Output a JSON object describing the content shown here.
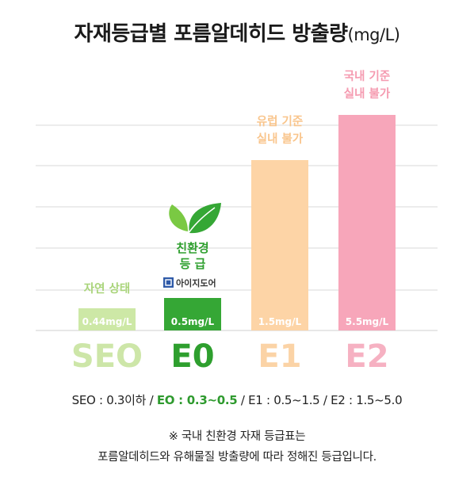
{
  "header": {
    "title": "자재등급별 포름알데히드 방출량",
    "unit": "(mg/L)"
  },
  "chart_data": {
    "type": "bar",
    "categories": [
      "SEO",
      "E0",
      "E1",
      "E2"
    ],
    "value_labels": [
      "0.44mg/L",
      "0.5mg/L",
      "1.5mg/L",
      "5.5mg/L"
    ],
    "colors": [
      "#cde8a6",
      "#35a735",
      "#fdd4a6",
      "#f7a6ba"
    ],
    "category_colors": [
      "#cde6a8",
      "#2e9f2e",
      "#fbd3a6",
      "#f6b1c2"
    ],
    "annotations": [
      [
        "자연 상태"
      ],
      [
        "친환경",
        "등 급"
      ],
      [
        "유럽 기준",
        "실내 불가"
      ],
      [
        "국내 기준",
        "실내 불가"
      ]
    ],
    "annotation_colors": [
      "#a9d47a",
      "#2e9f2e",
      "#f9c58c",
      "#f59ab0"
    ],
    "brand_text": "아이지도어",
    "grid": true
  },
  "legend": {
    "seo": "SEO : 0.3이하 / ",
    "e0": "EO : 0.3~0.5",
    "rest": " / E1 : 0.5~1.5 / E2 : 1.5~5.0"
  },
  "note": {
    "line1": "※ 국내 친환경 자재 등급표는",
    "line2": "포름알데히드와 유해물질 방출량에 따라 정해진 등급입니다."
  }
}
